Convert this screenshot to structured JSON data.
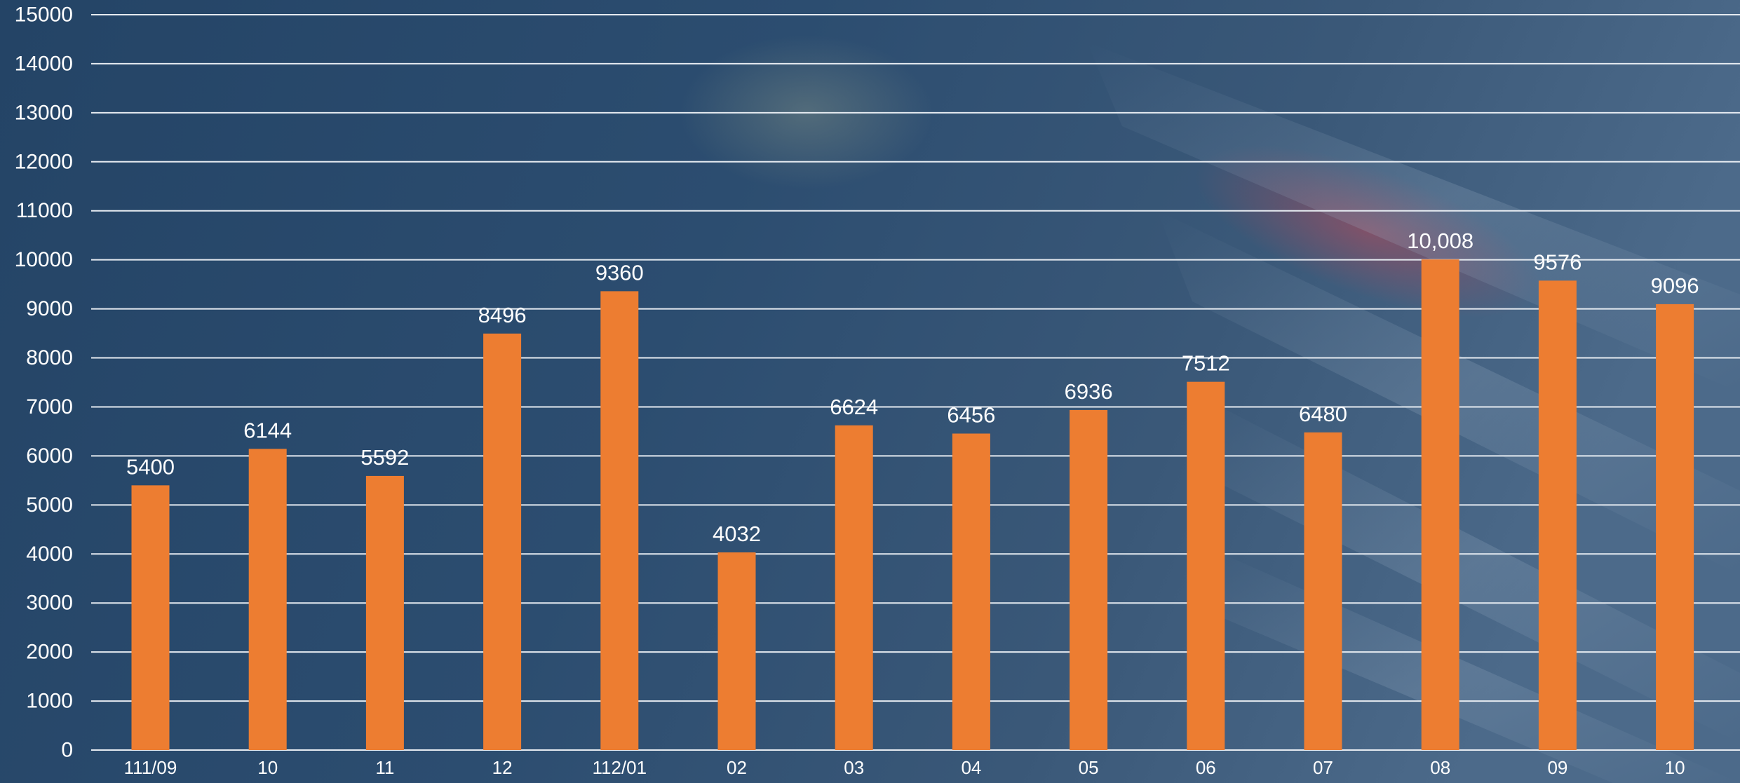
{
  "chart_data": {
    "type": "bar",
    "title": "",
    "xlabel": "",
    "ylabel": "",
    "ylim": [
      0,
      15000
    ],
    "yticks": [
      0,
      1000,
      2000,
      3000,
      4000,
      5000,
      6000,
      7000,
      8000,
      9000,
      10000,
      11000,
      12000,
      13000,
      14000,
      15000
    ],
    "grid": true,
    "legend": "none",
    "categories": [
      "111/09",
      "10",
      "11",
      "12",
      "112/01",
      "02",
      "03",
      "04",
      "05",
      "06",
      "07",
      "08",
      "09",
      "10"
    ],
    "values": [
      5400,
      6144,
      5592,
      8496,
      9360,
      4032,
      6624,
      6456,
      6936,
      7512,
      6480,
      10008,
      9576,
      9096
    ],
    "data_labels": [
      "5400",
      "6144",
      "5592",
      "8496",
      "9360",
      "4032",
      "6624",
      "6456",
      "6936",
      "7512",
      "6480",
      "10,008",
      "9576",
      "9096"
    ]
  },
  "colors": {
    "bar": "#ed7d31",
    "gridline": "#e6ebf1",
    "text": "#ffffff",
    "background_dark": "#1f3a5a",
    "background_light": "#4a6686"
  }
}
